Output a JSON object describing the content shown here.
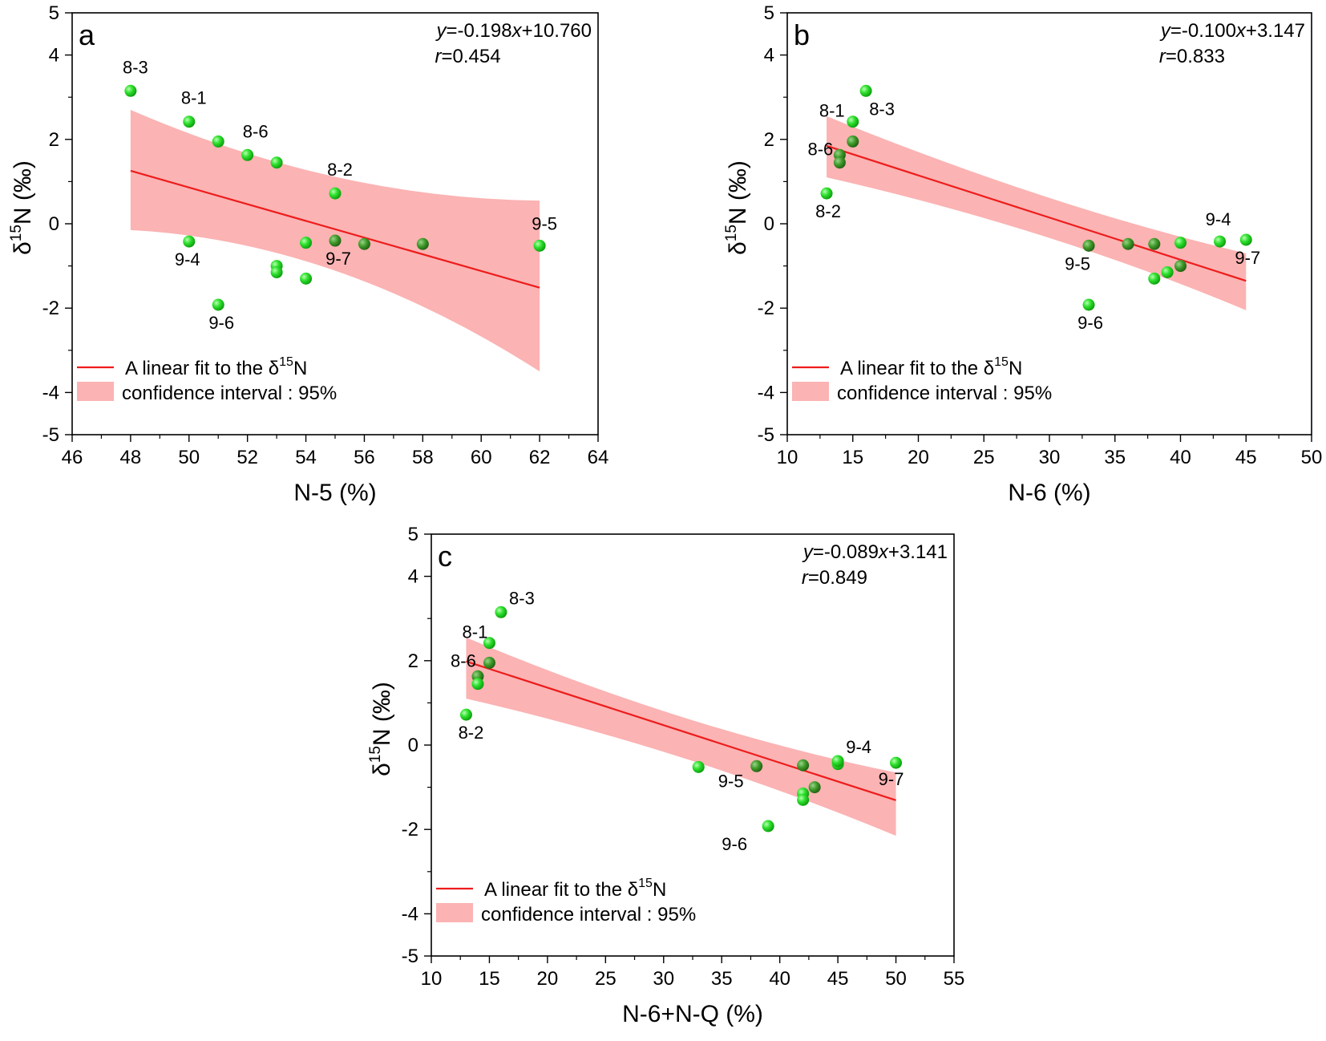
{
  "legend": {
    "fit_label": "A linear fit to the δ",
    "fit_sup": "15",
    "fit_suffix": "N",
    "ci_label": "confidence interval : 95%"
  },
  "colors": {
    "fit_line": "#ee1c1c",
    "band": "#fbb3b3",
    "point": "#22dd22",
    "point_dark": "#0d8c0d"
  },
  "chart_data": [
    {
      "type": "scatter",
      "panel_label": "a",
      "equation": "-0.198x+10.760",
      "r_value": "0.454",
      "xlabel": "N-5 (%)",
      "ylabel": "δ15N (‰)",
      "xlim": [
        46,
        64
      ],
      "xticks": [
        46,
        48,
        50,
        52,
        54,
        56,
        58,
        60,
        62,
        64
      ],
      "ylim": [
        -5,
        5
      ],
      "yticks": [
        -5,
        -4,
        -2,
        0,
        2,
        4,
        5
      ],
      "fit": {
        "slope": -0.198,
        "intercept": 10.76,
        "x_start": 48,
        "x_end": 62
      },
      "ci": {
        "x": [
          48,
          55,
          62
        ],
        "upper": [
          2.7,
          0.6,
          0.55
        ],
        "lower": [
          -0.15,
          -0.4,
          -3.5
        ]
      },
      "points": [
        {
          "x": 48,
          "y": 3.15,
          "label": "8-3"
        },
        {
          "x": 50,
          "y": 2.42,
          "label": "8-1"
        },
        {
          "x": 51,
          "y": 1.95,
          "label": ""
        },
        {
          "x": 52,
          "y": 1.63,
          "label": "8-6"
        },
        {
          "x": 53,
          "y": 1.45,
          "label": ""
        },
        {
          "x": 55,
          "y": 0.72,
          "label": "8-2"
        },
        {
          "x": 50,
          "y": -0.42,
          "label": "9-4"
        },
        {
          "x": 54,
          "y": -0.45,
          "label": ""
        },
        {
          "x": 55,
          "y": -0.4,
          "label": "9-7"
        },
        {
          "x": 56,
          "y": -0.48,
          "label": ""
        },
        {
          "x": 58,
          "y": -0.48,
          "label": ""
        },
        {
          "x": 62,
          "y": -0.52,
          "label": "9-5"
        },
        {
          "x": 53,
          "y": -1.0,
          "label": ""
        },
        {
          "x": 53,
          "y": -1.15,
          "label": ""
        },
        {
          "x": 54,
          "y": -1.3,
          "label": ""
        },
        {
          "x": 51,
          "y": -1.92,
          "label": "9-6"
        }
      ]
    },
    {
      "type": "scatter",
      "panel_label": "b",
      "equation": "-0.100x+3.147",
      "r_value": "0.833",
      "xlabel": "N-6 (%)",
      "ylabel": "δ15N (‰)",
      "xlim": [
        10,
        50
      ],
      "xticks": [
        10,
        15,
        20,
        25,
        30,
        35,
        40,
        45,
        50
      ],
      "ylim": [
        -5,
        5
      ],
      "yticks": [
        -5,
        -4,
        -2,
        0,
        2,
        4,
        5
      ],
      "fit": {
        "slope": -0.1,
        "intercept": 3.147,
        "x_start": 13,
        "x_end": 45
      },
      "ci": {
        "x": [
          13,
          30,
          45
        ],
        "upper": [
          2.55,
          0.4,
          -0.7
        ],
        "lower": [
          1.1,
          -0.1,
          -2.05
        ]
      },
      "points": [
        {
          "x": 16,
          "y": 3.15,
          "label": "8-3"
        },
        {
          "x": 15,
          "y": 2.42,
          "label": "8-1"
        },
        {
          "x": 15,
          "y": 1.95,
          "label": ""
        },
        {
          "x": 14,
          "y": 1.63,
          "label": "8-6"
        },
        {
          "x": 14,
          "y": 1.45,
          "label": ""
        },
        {
          "x": 13,
          "y": 0.72,
          "label": "8-2"
        },
        {
          "x": 33,
          "y": -0.52,
          "label": "9-5"
        },
        {
          "x": 36,
          "y": -0.48,
          "label": ""
        },
        {
          "x": 38,
          "y": -0.48,
          "label": ""
        },
        {
          "x": 40,
          "y": -0.45,
          "label": ""
        },
        {
          "x": 43,
          "y": -0.42,
          "label": "9-4"
        },
        {
          "x": 45,
          "y": -0.38,
          "label": "9-7"
        },
        {
          "x": 40,
          "y": -1.0,
          "label": ""
        },
        {
          "x": 39,
          "y": -1.15,
          "label": ""
        },
        {
          "x": 38,
          "y": -1.3,
          "label": ""
        },
        {
          "x": 33,
          "y": -1.92,
          "label": "9-6"
        }
      ]
    },
    {
      "type": "scatter",
      "panel_label": "c",
      "equation": "-0.089x+3.141",
      "r_value": "0.849",
      "xlabel": "N-6+N-Q (%)",
      "ylabel": "δ15N (‰)",
      "xlim": [
        10,
        55
      ],
      "xticks": [
        10,
        15,
        20,
        25,
        30,
        35,
        40,
        45,
        50,
        55
      ],
      "ylim": [
        -5,
        5
      ],
      "yticks": [
        -5,
        -4,
        -2,
        0,
        2,
        4,
        5
      ],
      "fit": {
        "slope": -0.089,
        "intercept": 3.141,
        "x_start": 13,
        "x_end": 50
      },
      "ci": {
        "x": [
          13,
          32,
          50
        ],
        "upper": [
          2.55,
          0.35,
          -0.65
        ],
        "lower": [
          1.1,
          -0.1,
          -2.15
        ]
      },
      "points": [
        {
          "x": 16,
          "y": 3.15,
          "label": "8-3"
        },
        {
          "x": 15,
          "y": 2.42,
          "label": "8-1"
        },
        {
          "x": 15,
          "y": 1.95,
          "label": ""
        },
        {
          "x": 14,
          "y": 1.63,
          "label": "8-6"
        },
        {
          "x": 14,
          "y": 1.45,
          "label": ""
        },
        {
          "x": 13,
          "y": 0.72,
          "label": "8-2"
        },
        {
          "x": 33,
          "y": -0.52,
          "label": ""
        },
        {
          "x": 38,
          "y": -0.5,
          "label": "9-5"
        },
        {
          "x": 42,
          "y": -0.48,
          "label": ""
        },
        {
          "x": 45,
          "y": -0.45,
          "label": ""
        },
        {
          "x": 45,
          "y": -0.38,
          "label": "9-4"
        },
        {
          "x": 50,
          "y": -0.42,
          "label": "9-7"
        },
        {
          "x": 43,
          "y": -1.0,
          "label": ""
        },
        {
          "x": 42,
          "y": -1.15,
          "label": ""
        },
        {
          "x": 42,
          "y": -1.3,
          "label": ""
        },
        {
          "x": 39,
          "y": -1.92,
          "label": "9-6"
        }
      ]
    }
  ]
}
